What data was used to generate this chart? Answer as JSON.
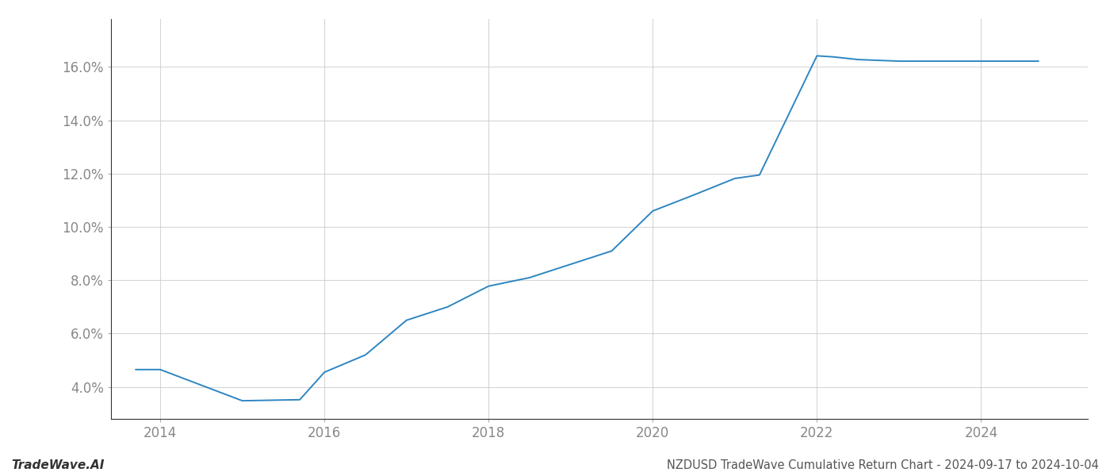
{
  "x_years": [
    2013.7,
    2014.0,
    2015.0,
    2015.7,
    2016.0,
    2016.5,
    2017.0,
    2017.5,
    2018.0,
    2018.5,
    2019.0,
    2019.5,
    2020.0,
    2020.5,
    2021.0,
    2021.3,
    2022.0,
    2022.2,
    2022.5,
    2023.0,
    2023.5,
    2024.0,
    2024.7
  ],
  "y_values": [
    4.65,
    4.65,
    3.48,
    3.52,
    4.55,
    5.2,
    6.5,
    7.0,
    7.78,
    8.1,
    8.6,
    9.1,
    10.6,
    11.2,
    11.82,
    11.95,
    16.42,
    16.38,
    16.28,
    16.22,
    16.22,
    16.22,
    16.22
  ],
  "line_color": "#2e86c1",
  "line_width": 1.4,
  "title": "NZDUSD TradeWave Cumulative Return Chart - 2024-09-17 to 2024-10-04",
  "title_fontsize": 10.5,
  "title_color": "#555555",
  "watermark": "TradeWave.AI",
  "watermark_fontsize": 11,
  "watermark_color": "#333333",
  "watermark_fontstyle": "italic",
  "watermark_fontweight": "bold",
  "xlim": [
    2013.4,
    2025.3
  ],
  "ylim": [
    2.8,
    17.8
  ],
  "xticks": [
    2014,
    2016,
    2018,
    2020,
    2022,
    2024
  ],
  "ytick_values": [
    4.0,
    6.0,
    8.0,
    10.0,
    12.0,
    14.0,
    16.0
  ],
  "ytick_labels": [
    "4.0%",
    "6.0%",
    "8.0%",
    "10.0%",
    "12.0%",
    "14.0%",
    "16.0%"
  ],
  "background_color": "#ffffff",
  "grid_color": "#cccccc",
  "grid_alpha": 0.8,
  "tick_label_color": "#888888",
  "tick_label_fontsize": 12,
  "left_spine_color": "#333333",
  "bottom_spine_color": "#333333"
}
